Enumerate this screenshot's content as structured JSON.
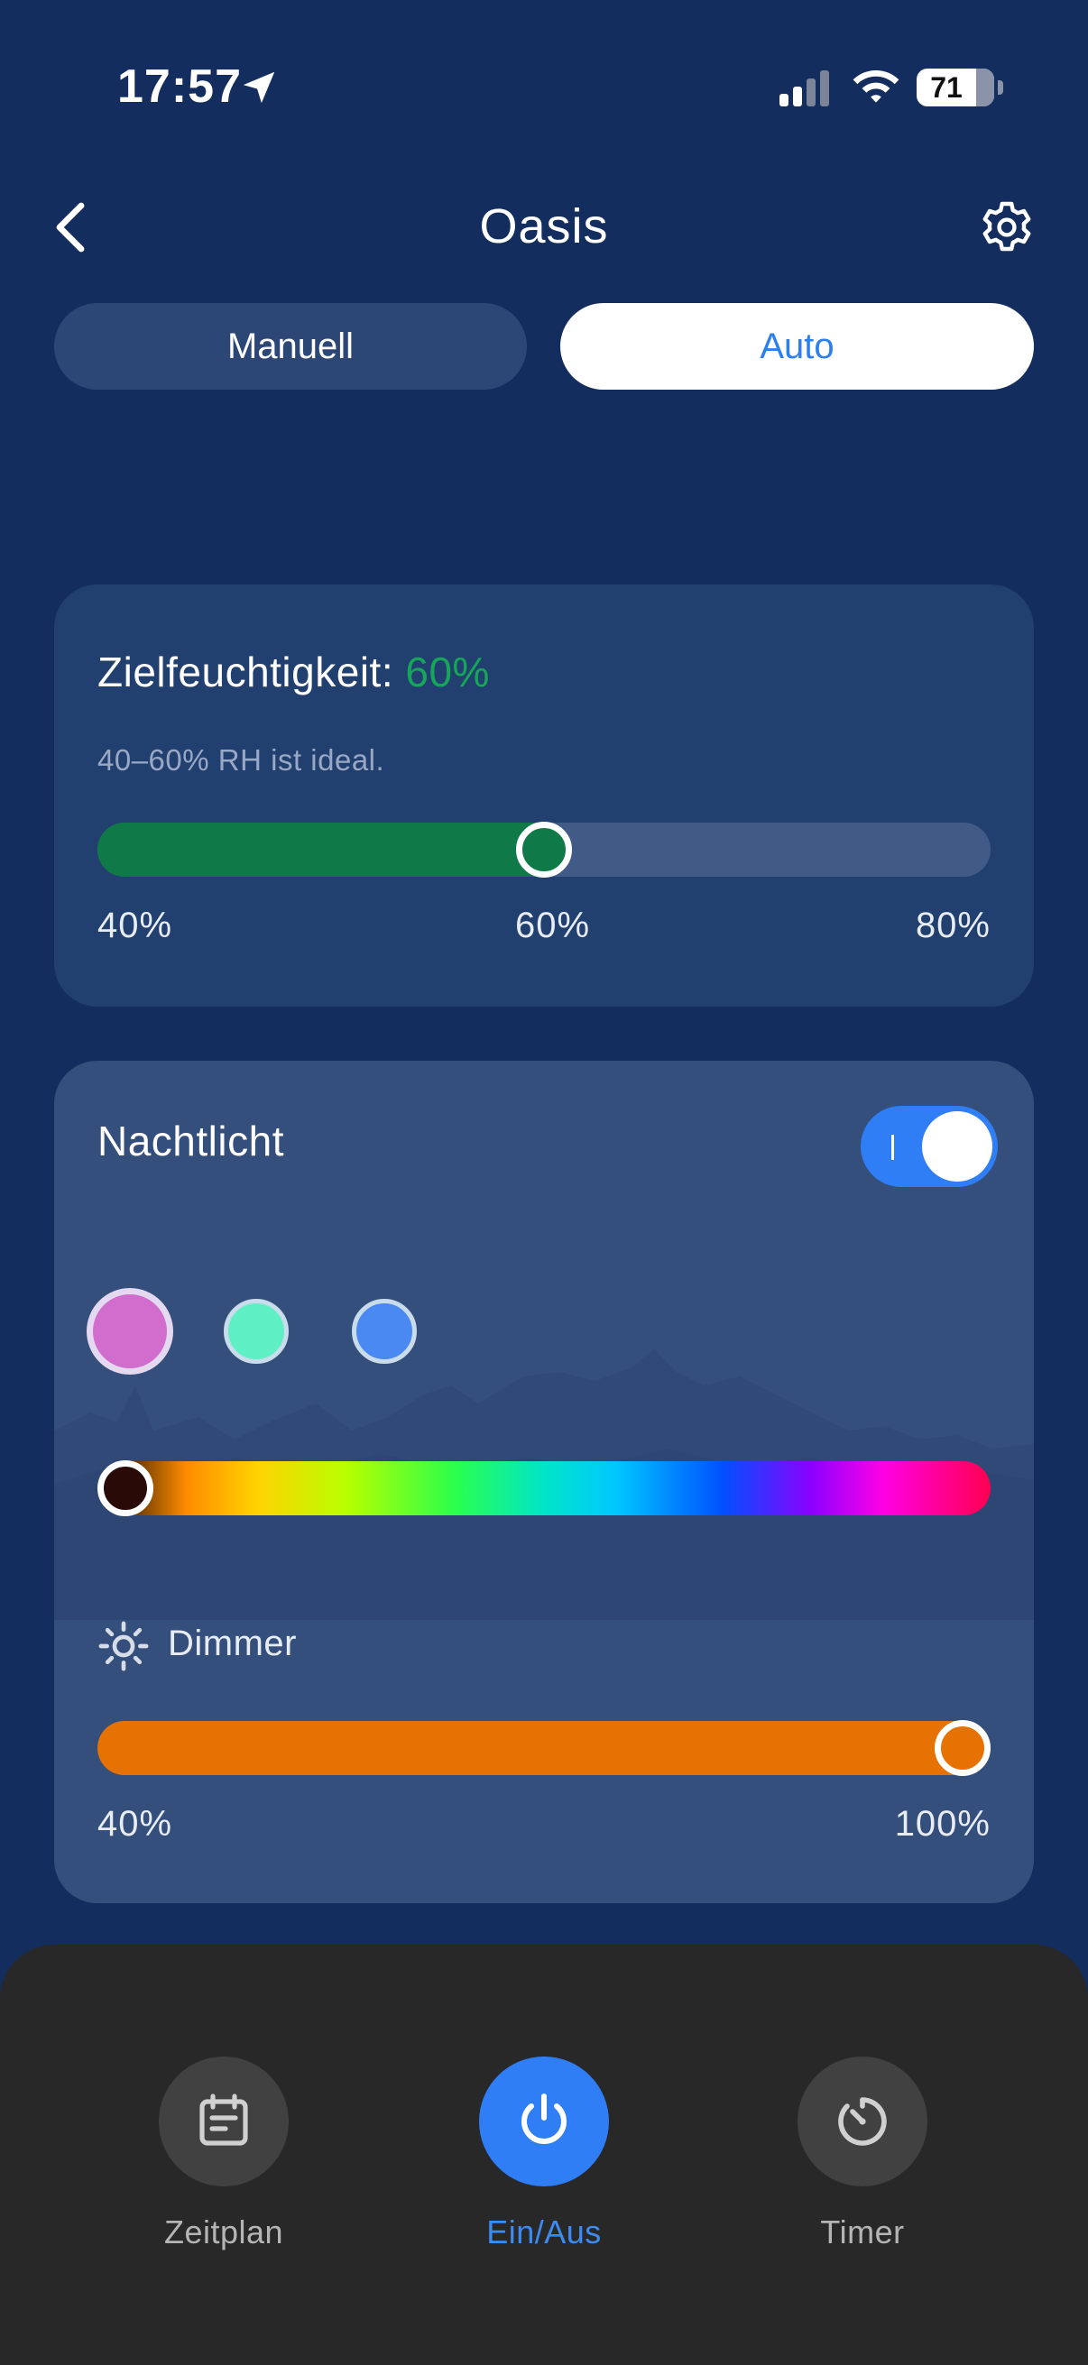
{
  "status_bar": {
    "time": "17:57",
    "battery": "71"
  },
  "header": {
    "title": "Oasis"
  },
  "mode_tabs": {
    "manual": "Manuell",
    "auto": "Auto",
    "selected": "Auto"
  },
  "humidity": {
    "title": "Zielfeuchtigkeit:",
    "value": "60%",
    "hint": "40–60% RH ist ideal.",
    "min_label": "40%",
    "mid_label": "60%",
    "max_label": "80%",
    "level_fraction": 0.5
  },
  "night_light": {
    "title": "Nachtlicht",
    "enabled": true,
    "toggle_on_mark": "I",
    "swatches": [
      "#d16ecd",
      "#5ef0c4",
      "#4a89f2"
    ],
    "selected_swatch": 0,
    "hue_fraction": 0.0,
    "dimmer": {
      "label": "Dimmer",
      "min_label": "40%",
      "max_label": "100%",
      "level_fraction": 1.0
    }
  },
  "bottom_nav": {
    "items": [
      {
        "label": "Zeitplan",
        "icon": "calendar-icon"
      },
      {
        "label": "Ein/Aus",
        "icon": "power-icon",
        "active": true
      },
      {
        "label": "Timer",
        "icon": "timer-icon"
      }
    ]
  },
  "colors": {
    "background": "#132d5e",
    "accent_blue": "#2f7ef5",
    "humidity_green": "#0f7a48",
    "humidity_value_green": "#17a55a",
    "dimmer_orange": "#e57203"
  }
}
